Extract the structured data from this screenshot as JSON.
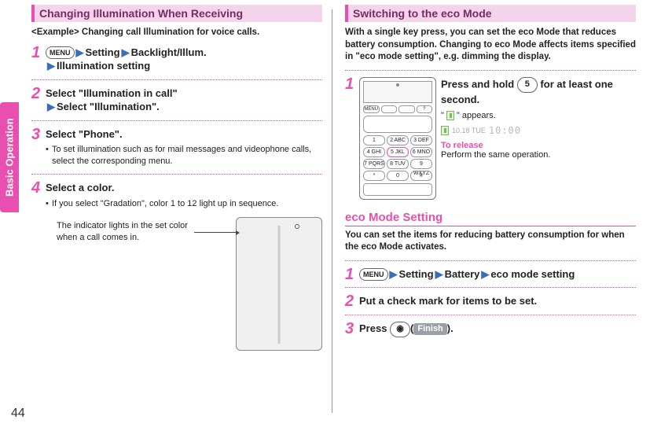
{
  "sideTab": "Basic Operation",
  "pageNumber": "44",
  "left": {
    "title": "Changing Illumination When Receiving",
    "exampleLine": "<Example> Changing call Illumination for voice calls.",
    "steps": [
      {
        "num": "1",
        "segments": [
          "MENU",
          "▶",
          "Setting",
          "▶",
          "Backlight/Illum.",
          "\n▶",
          "Illumination setting"
        ],
        "subs": []
      },
      {
        "num": "2",
        "segments": [
          "Select \"Illumination in call\"",
          "\n▶",
          "Select \"Illumination\"."
        ],
        "subs": []
      },
      {
        "num": "3",
        "segments": [
          "Select \"Phone\"."
        ],
        "subs": [
          "To set illumination such as for mail messages and videophone calls, select the corresponding menu."
        ]
      },
      {
        "num": "4",
        "segments": [
          "Select a color."
        ],
        "subs": [
          "If you select \"Gradation\", color 1 to 12 light up in sequence."
        ]
      }
    ],
    "callout": "The indicator lights in the set color when a call comes in."
  },
  "right": {
    "title": "Switching to the eco Mode",
    "intro": "With a single key press, you can set the eco Mode that reduces battery consumption. Changing to eco Mode affects items specified in \"eco mode setting\", e.g. dimming the display.",
    "step1": {
      "num": "1",
      "line_pre": "Press and hold ",
      "key": "5",
      "line_post": " for at least one second.",
      "appears_pre": "\" ",
      "appears_post": " \" appears.",
      "statusDate": "10.18 TUE",
      "statusClock": "10:00",
      "toReleaseLabel": "To release",
      "toReleaseBody": "Perform the same operation."
    },
    "keypad": {
      "nav": [
        "MENU",
        "",
        "",
        "?"
      ],
      "keys": [
        "1",
        "2 ABC",
        "3 DEF",
        "4 GHI",
        "5 JKL",
        "6 MNO",
        "7 PQRS",
        "8 TUV",
        "9 WXYZ",
        "*",
        "0",
        "#"
      ],
      "highlightIndex": 4
    },
    "subHeading": "eco Mode Setting",
    "subIntro": "You can set the items for reducing battery consumption for when the eco Mode activates.",
    "steps": [
      {
        "num": "1",
        "segments": [
          "MENU",
          "▶",
          "Setting",
          "▶",
          "Battery",
          "▶",
          "eco mode setting"
        ]
      },
      {
        "num": "2",
        "segments": [
          "Put a check mark for items to be set."
        ]
      },
      {
        "num": "3",
        "segments": [
          "Press ",
          "CAMKEY",
          "(",
          "FINISH",
          ")."
        ]
      }
    ],
    "cameraKeyLabel": "◉",
    "finishLabel": "Finish"
  }
}
